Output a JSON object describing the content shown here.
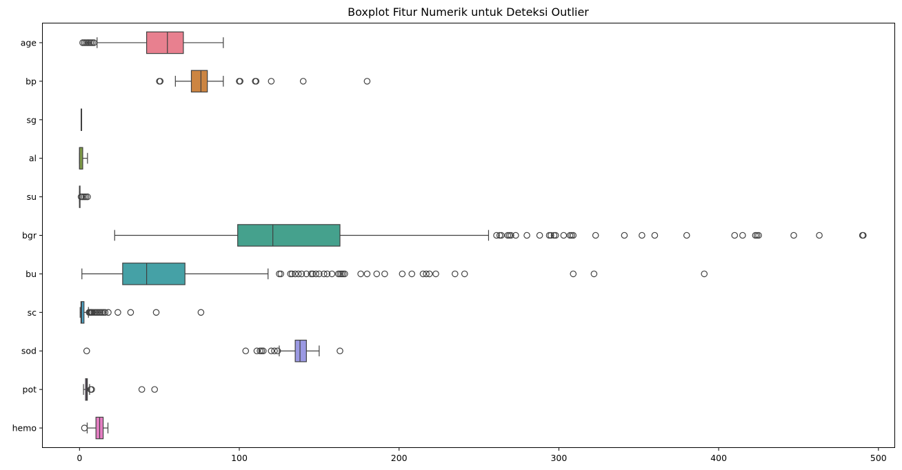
{
  "chart_data": {
    "type": "boxplot",
    "orientation": "horizontal",
    "title": "Boxplot Fitur Numerik untuk Deteksi Outlier",
    "xlabel": "",
    "ylabel": "",
    "xlim": [
      -23,
      510
    ],
    "xticks": [
      0,
      100,
      200,
      300,
      400,
      500
    ],
    "xtick_labels": [
      "0",
      "100",
      "200",
      "300",
      "400",
      "500"
    ],
    "categories": [
      "age",
      "bp",
      "sg",
      "al",
      "su",
      "bgr",
      "bu",
      "sc",
      "sod",
      "pot",
      "hemo"
    ],
    "colors": [
      "#e8808f",
      "#cc8542",
      "#a99c3c",
      "#7e9a48",
      "#45a06a",
      "#45a18d",
      "#45a1a6",
      "#4aa3c7",
      "#9b99e3",
      "#c88fe2",
      "#e57ec3"
    ],
    "series": [
      {
        "category": "age",
        "whislo": 11,
        "q1": 42,
        "median": 55,
        "q3": 65,
        "whishi": 90,
        "fliers": [
          2,
          3,
          4,
          5,
          6,
          7,
          8,
          9
        ]
      },
      {
        "category": "bp",
        "whislo": 60,
        "q1": 70,
        "median": 76,
        "q3": 80,
        "whishi": 90,
        "fliers": [
          50,
          50.5,
          100,
          100.5,
          110,
          110.5,
          120,
          140,
          180
        ]
      },
      {
        "category": "sg",
        "whislo": 1.005,
        "q1": 1.01,
        "median": 1.02,
        "q3": 1.02,
        "whishi": 1.025,
        "fliers": []
      },
      {
        "category": "al",
        "whislo": 0,
        "q1": 0,
        "median": 0,
        "q3": 2,
        "whishi": 5,
        "fliers": []
      },
      {
        "category": "su",
        "whislo": 0,
        "q1": 0,
        "median": 0,
        "q3": 0,
        "whishi": 0,
        "fliers": [
          1,
          2,
          3,
          4,
          5
        ]
      },
      {
        "category": "bgr",
        "whislo": 22,
        "q1": 99,
        "median": 121,
        "q3": 163,
        "whishi": 256,
        "fliers": [
          261,
          263,
          264,
          268,
          269,
          270,
          273,
          280,
          288,
          294,
          295,
          297,
          298,
          303,
          307,
          308,
          309,
          323,
          341,
          352,
          360,
          380,
          410,
          415,
          423,
          424,
          425,
          447,
          463,
          490,
          490.5
        ]
      },
      {
        "category": "bu",
        "whislo": 1.5,
        "q1": 27,
        "median": 42,
        "q3": 66,
        "whishi": 118,
        "fliers": [
          125,
          126,
          132,
          133,
          135,
          137,
          139,
          142,
          145,
          146,
          148,
          150,
          153,
          155,
          158,
          162,
          163,
          164,
          165,
          166,
          176,
          180,
          186,
          191,
          202,
          208,
          215,
          217,
          219,
          223,
          235,
          241,
          309,
          322,
          391
        ]
      },
      {
        "category": "sc",
        "whislo": 0.4,
        "q1": 0.9,
        "median": 1.3,
        "q3": 2.8,
        "whishi": 5.6,
        "fliers": [
          6,
          6.5,
          7,
          7.5,
          8,
          9,
          10,
          11,
          12,
          13,
          14,
          15,
          16,
          18,
          24,
          32,
          48,
          76
        ]
      },
      {
        "category": "sod",
        "whislo": 125,
        "q1": 135,
        "median": 138,
        "q3": 142,
        "whishi": 150,
        "fliers": [
          4.5,
          104,
          111,
          113,
          114,
          115,
          120,
          122,
          124,
          163
        ]
      },
      {
        "category": "pot",
        "whislo": 2.5,
        "q1": 3.8,
        "median": 4.4,
        "q3": 4.9,
        "whishi": 6.3,
        "fliers": [
          7,
          7.6,
          39,
          47
        ]
      },
      {
        "category": "hemo",
        "whislo": 4.8,
        "q1": 10.3,
        "median": 12.6,
        "q3": 14.8,
        "whishi": 17.8,
        "fliers": [
          3.1
        ]
      }
    ]
  }
}
